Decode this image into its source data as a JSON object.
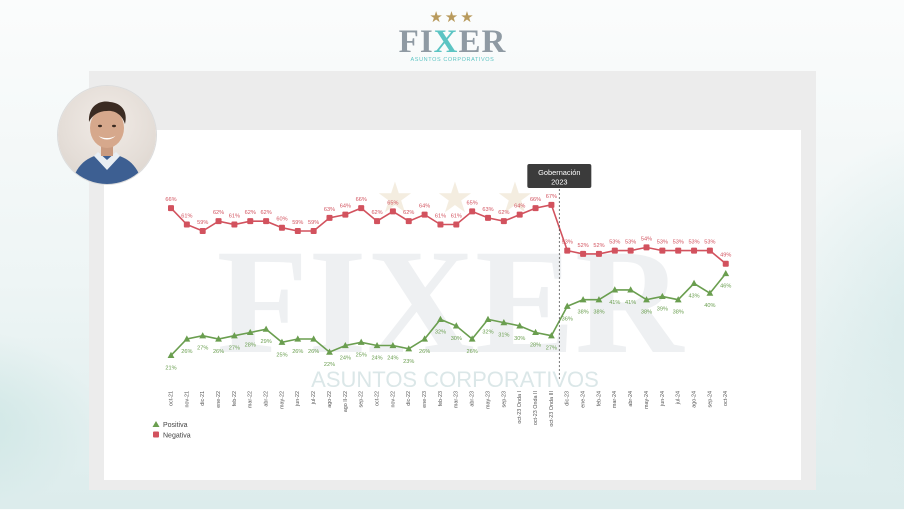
{
  "logo": {
    "stars": "★★★",
    "word_left": "FI",
    "word_x": "X",
    "word_right": "ER",
    "tagline": "ASUNTOS CORPORATIVOS"
  },
  "watermark": {
    "word": "FIXER",
    "tagline": "ASUNTOS CORPORATIVOS"
  },
  "colors": {
    "positive": "#6a9e4f",
    "negative": "#d2525e",
    "callout_bg": "#3b3b3b"
  },
  "chart_data": {
    "type": "line",
    "categories": [
      "oct-21",
      "nov-21",
      "dic-21",
      "ene-22",
      "feb-22",
      "mar-22",
      "abr-22",
      "may-22",
      "jun-22",
      "jul-22",
      "ago-22",
      "ago II-22",
      "sep-22",
      "oct-22",
      "nov-22",
      "dic-22",
      "ene-23",
      "feb-23",
      "mar-23",
      "abr-23",
      "may-23",
      "sep-23",
      "oct-23 Onda I",
      "oct-23 Onda II",
      "oct-23 Onda III",
      "dic-23",
      "ene-24",
      "feb-24",
      "mar-24",
      "abr-24",
      "may-24",
      "jun-24",
      "jul-24",
      "ago-24",
      "sep-24",
      "oct-24"
    ],
    "series": [
      {
        "name": "Positiva",
        "values": [
          21,
          26,
          27,
          26,
          27,
          28,
          29,
          25,
          26,
          26,
          22,
          24,
          25,
          24,
          24,
          23,
          26,
          32,
          30,
          26,
          32,
          31,
          30,
          28,
          27,
          36,
          38,
          38,
          41,
          41,
          38,
          39,
          38,
          43,
          40,
          46
        ],
        "labels": [
          "21%",
          "26%",
          "27%",
          "26%",
          "27%",
          "28%",
          "29%",
          "25%",
          "26%",
          "26%",
          "22%",
          "24%",
          "25%",
          "24%",
          "24%",
          "23%",
          "26%",
          "32%",
          "30%",
          "26%",
          "32%",
          "31%",
          "30%",
          "28%",
          "27%",
          "36%",
          "38%",
          "38%",
          "41%",
          "41%",
          "38%",
          "39%",
          "38%",
          "43%",
          "40%",
          "46%"
        ]
      },
      {
        "name": "Negativa",
        "values": [
          66,
          61,
          59,
          62,
          61,
          62,
          62,
          60,
          59,
          59,
          63,
          64,
          66,
          62,
          65,
          62,
          64,
          61,
          61,
          65,
          63,
          62,
          64,
          66,
          67,
          53,
          52,
          52,
          53,
          53,
          54,
          53,
          53,
          53,
          53,
          49
        ],
        "labels": [
          "66%",
          "61%",
          "59%",
          "62%",
          "61%",
          "62%",
          "62%",
          "60%",
          "59%",
          "59%",
          "63%",
          "64%",
          "66%",
          "62%",
          "65%",
          "62%",
          "64%",
          "61%",
          "61%",
          "65%",
          "63%",
          "62%",
          "64%",
          "66%",
          "67%",
          "53%",
          "52%",
          "52%",
          "53%",
          "53%",
          "54%",
          "53%",
          "53%",
          "53%",
          "53%",
          "49%"
        ]
      }
    ],
    "annotation": {
      "line1": "Gobernación",
      "line2": "2023",
      "between_index": 24
    },
    "legend_position": "bottom-left",
    "ylim": [
      15,
      70
    ],
    "grid": false
  }
}
